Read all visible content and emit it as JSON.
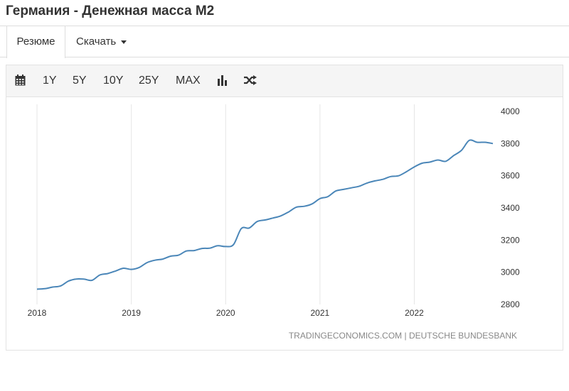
{
  "page": {
    "title": "Германия - Денежная масса M2"
  },
  "tabs": {
    "summary": "Резюме",
    "download": "Скачать"
  },
  "toolbar": {
    "ranges": [
      "1Y",
      "5Y",
      "10Y",
      "25Y",
      "MAX"
    ],
    "icons": [
      "calendar-icon",
      "bar-chart-icon",
      "shuffle-icon"
    ]
  },
  "chart_data": {
    "type": "line",
    "title": "",
    "xlabel": "",
    "ylabel": "",
    "series": [
      {
        "color": "#4a86b8",
        "x": [
          "2018-01",
          "2018-02",
          "2018-03",
          "2018-04",
          "2018-05",
          "2018-06",
          "2018-07",
          "2018-08",
          "2018-09",
          "2018-10",
          "2018-11",
          "2018-12",
          "2019-01",
          "2019-02",
          "2019-03",
          "2019-04",
          "2019-05",
          "2019-06",
          "2019-07",
          "2019-08",
          "2019-09",
          "2019-10",
          "2019-11",
          "2019-12",
          "2020-01",
          "2020-02",
          "2020-03",
          "2020-04",
          "2020-05",
          "2020-06",
          "2020-07",
          "2020-08",
          "2020-09",
          "2020-10",
          "2020-11",
          "2020-12",
          "2021-01",
          "2021-02",
          "2021-03",
          "2021-04",
          "2021-05",
          "2021-06",
          "2021-07",
          "2021-08",
          "2021-09",
          "2021-10",
          "2021-11",
          "2021-12",
          "2022-01",
          "2022-02",
          "2022-03",
          "2022-04",
          "2022-05",
          "2022-06",
          "2022-07",
          "2022-08",
          "2022-09",
          "2022-10",
          "2022-11"
        ],
        "values": [
          2895,
          2898,
          2908,
          2915,
          2945,
          2958,
          2957,
          2950,
          2983,
          2992,
          3008,
          3025,
          3018,
          3030,
          3060,
          3075,
          3082,
          3100,
          3106,
          3132,
          3135,
          3148,
          3150,
          3165,
          3160,
          3172,
          3272,
          3275,
          3315,
          3325,
          3337,
          3350,
          3375,
          3405,
          3410,
          3425,
          3458,
          3470,
          3505,
          3515,
          3525,
          3535,
          3555,
          3568,
          3578,
          3595,
          3600,
          3625,
          3655,
          3678,
          3685,
          3698,
          3690,
          3725,
          3758,
          3820,
          3808,
          3808,
          3800
        ]
      }
    ],
    "x_ticks": [
      "2018",
      "2019",
      "2020",
      "2021",
      "2022"
    ],
    "y_ticks": [
      2800,
      3000,
      3200,
      3400,
      3600,
      3800,
      4000
    ],
    "ylim": [
      2800,
      4000
    ],
    "grid": {
      "vertical": true,
      "horizontal": false
    },
    "y_axis_side": "right",
    "source": "TRADINGECONOMICS.COM | DEUTSCHE BUNDESBANK"
  }
}
